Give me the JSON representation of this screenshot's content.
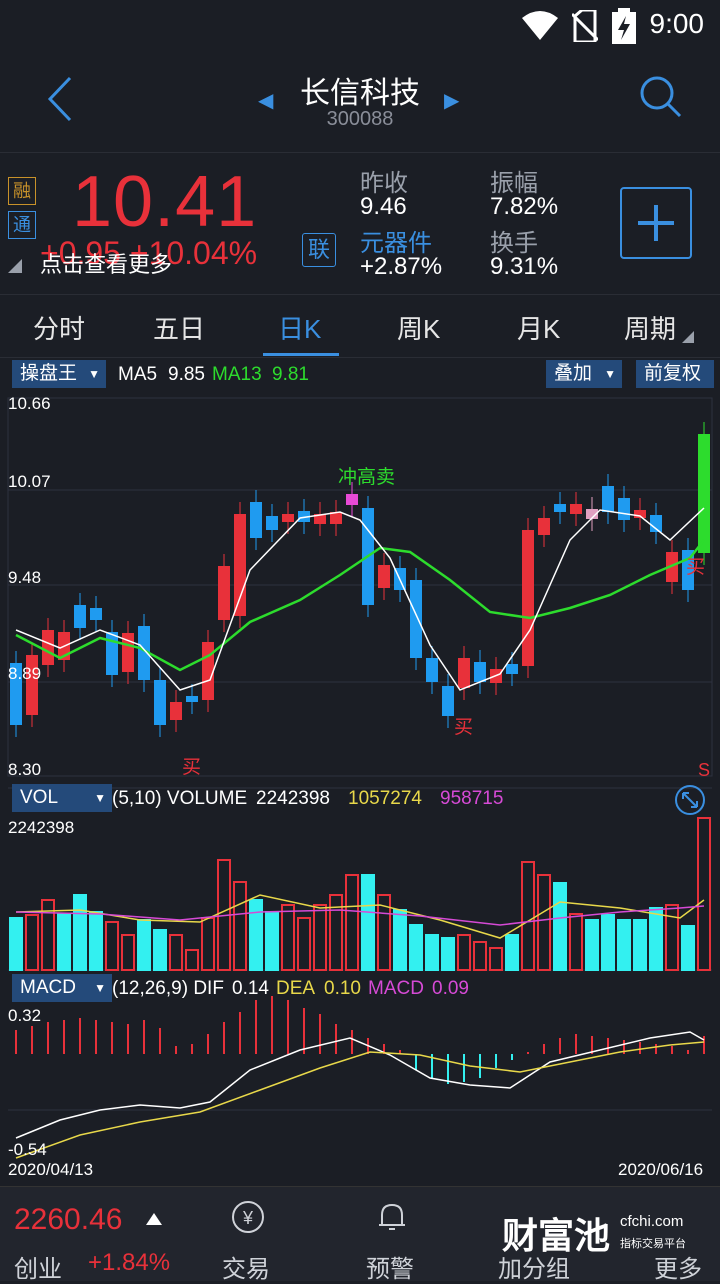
{
  "status": {
    "time": "9:00"
  },
  "header": {
    "title": "长信科技",
    "code": "300088"
  },
  "quote": {
    "badge1": "融",
    "badge2": "通",
    "price": "10.41",
    "change": "+0.95  +10.04%",
    "lian": "联",
    "hint": "点击查看更多",
    "prev_close_label": "昨收",
    "prev_close": "9.46",
    "sector_label": "元器件",
    "sector_change": "+2.87%",
    "amplitude_label": "振幅",
    "amplitude": "7.82%",
    "turnover_label": "换手",
    "turnover": "9.31%"
  },
  "tabs": [
    "分时",
    "五日",
    "日K",
    "周K",
    "月K",
    "周期"
  ],
  "indicator_row": {
    "selector": "操盘王",
    "ma5_label": "MA5",
    "ma5": "9.85",
    "ma13_label": "MA13",
    "ma13": "9.81",
    "overlay": "叠加",
    "adjust": "前复权"
  },
  "kline": {
    "y_labels": [
      "10.66",
      "10.07",
      "9.48",
      "8.89",
      "8.30"
    ],
    "signal_sell": "冲高卖",
    "signal_buy": "买",
    "s_mark": "S"
  },
  "volume_row": {
    "selector": "VOL",
    "params": "(5,10) VOLUME",
    "volume": "2242398",
    "ma5v": "1057274",
    "ma10v": "958715",
    "axis_top": "2242398"
  },
  "macd_row": {
    "selector": "MACD",
    "params": "(12,26,9) DIF",
    "dif": "0.14",
    "dea_label": "DEA",
    "dea": "0.10",
    "macd_label": "MACD",
    "macd": "0.09",
    "axis_top": "0.32",
    "axis_bottom": "-0.54"
  },
  "dates": {
    "start": "2020/04/13",
    "end": "2020/06/16"
  },
  "bottom": {
    "index_value": "2260.46",
    "index_name": "创业",
    "index_change": "+1.84%",
    "trade": "交易",
    "alert": "预警",
    "addgroup": "加分组",
    "more": "更多",
    "logo": "财富池",
    "logo_site": "cfchi.com",
    "logo_sub": "指标交易平台"
  },
  "colors": {
    "up": "#e8313a",
    "down": "#1f9bf0",
    "ma13": "#2ddc2d",
    "accent": "#3a8fe0"
  }
}
